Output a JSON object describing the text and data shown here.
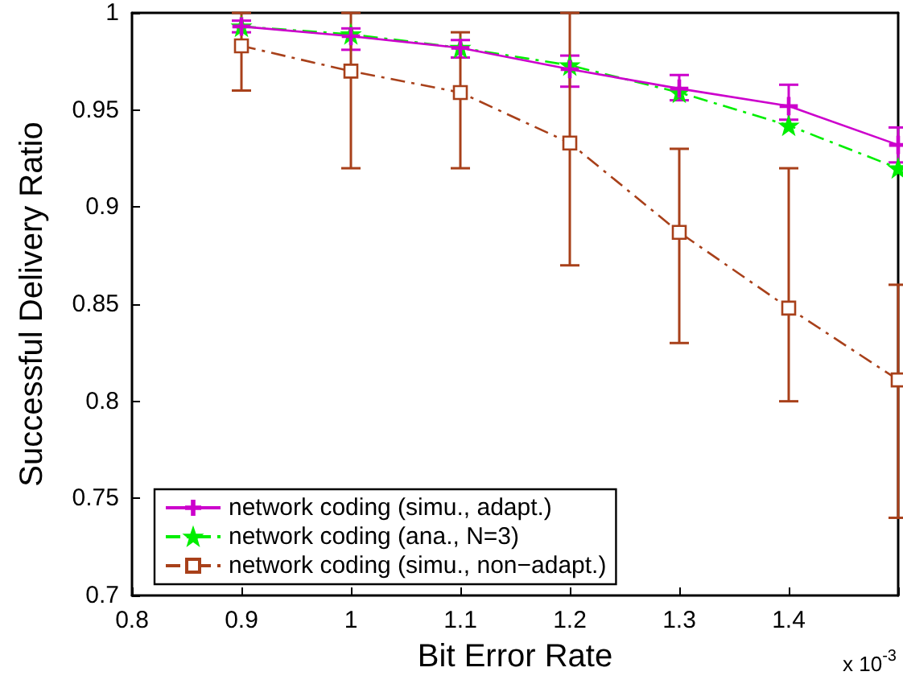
{
  "chart_data": {
    "type": "line",
    "xlabel": "Bit Error Rate",
    "ylabel": "Successful Delivery Ratio",
    "annotations": [
      "x 10$^{-3}$"
    ],
    "x": [
      0.9,
      1.0,
      1.1,
      1.2,
      1.3,
      1.4,
      1.5
    ],
    "series": [
      {
        "name": "network coding (simu., adapt.)",
        "color": "#cc00cc",
        "marker": "cross",
        "line_style": "solid",
        "values": [
          0.993,
          0.988,
          0.982,
          0.971,
          0.961,
          0.952,
          0.932
        ],
        "errors": [
          [
            0.99,
            0.996
          ],
          [
            0.981,
            0.992
          ],
          [
            0.977,
            0.986
          ],
          [
            0.962,
            0.978
          ],
          [
            0.955,
            0.968
          ],
          [
            0.945,
            0.963
          ],
          [
            0.923,
            0.941
          ]
        ]
      },
      {
        "name": "network coding (ana., N=3)",
        "color": "#00ee00",
        "marker": "star",
        "line_style": "dashed",
        "values": [
          0.993,
          0.989,
          0.982,
          0.973,
          0.959,
          0.942,
          0.92
        ]
      },
      {
        "name": "network coding (simu., non−adapt.)",
        "color": "#a8401a",
        "marker": "square",
        "line_style": "dashed",
        "values": [
          0.983,
          0.97,
          0.959,
          0.933,
          0.887,
          0.848,
          0.811
        ],
        "errors": [
          [
            0.96,
            1.0
          ],
          [
            0.92,
            1.0
          ],
          [
            0.92,
            0.99
          ],
          [
            0.87,
            1.0
          ],
          [
            0.83,
            0.93
          ],
          [
            0.8,
            0.92
          ],
          [
            0.74,
            0.86
          ]
        ]
      }
    ],
    "xlim": [
      0.8,
      1.5
    ],
    "xticks": [
      0.8,
      0.9,
      1,
      1.1,
      1.2,
      1.3,
      1.4,
      {
        "value": 1.5,
        "label": null
      }
    ],
    "ylim": [
      0.7,
      1
    ],
    "yticks": [
      0.7,
      0.75,
      0.8,
      0.85,
      0.9,
      0.95,
      1
    ],
    "grid": false,
    "legend": "bottom left"
  }
}
